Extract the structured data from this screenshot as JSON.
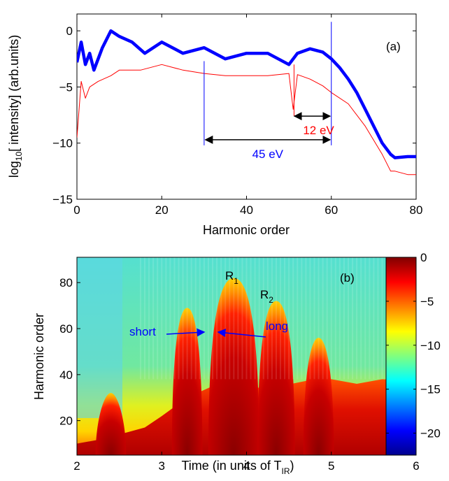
{
  "chart_data": [
    {
      "panel_label": "(a)",
      "type": "line",
      "xlabel": "Harmonic order",
      "ylabel": "log10[ intensity] (arb.units)",
      "xlim": [
        0,
        80
      ],
      "ylim": [
        -15,
        1.5
      ],
      "x_ticks": [
        "0",
        "20",
        "40",
        "60",
        "80"
      ],
      "y_ticks": [
        "0",
        "−5",
        "−10",
        "−15"
      ],
      "series": [
        {
          "color": "#0000ff",
          "style": "thick",
          "x": [
            0,
            1,
            2,
            3,
            4,
            6,
            8,
            10,
            13,
            16,
            20,
            25,
            30,
            35,
            40,
            45,
            50,
            52,
            55,
            58,
            60,
            62,
            64,
            66,
            68,
            70,
            72,
            74,
            75,
            78,
            80
          ],
          "y": [
            -2.8,
            -1.0,
            -3.0,
            -2.0,
            -3.5,
            -1.5,
            0.0,
            -0.5,
            -1.0,
            -2.0,
            -1.0,
            -2.0,
            -1.5,
            -2.5,
            -2.0,
            -2.0,
            -3.0,
            -2.0,
            -1.6,
            -1.9,
            -2.5,
            -3.3,
            -4.3,
            -5.5,
            -7.0,
            -8.5,
            -10.0,
            -11.0,
            -11.3,
            -11.2,
            -11.2
          ]
        },
        {
          "color": "#ff0000",
          "style": "thin",
          "x": [
            0,
            1,
            2,
            3,
            5,
            8,
            10,
            15,
            20,
            25,
            30,
            35,
            40,
            45,
            50,
            51,
            52,
            55,
            58,
            60,
            64,
            68,
            72,
            74,
            75,
            78,
            80
          ],
          "y": [
            -9.5,
            -4.5,
            -6.0,
            -5.0,
            -4.5,
            -4.0,
            -3.5,
            -3.5,
            -3.0,
            -3.5,
            -3.8,
            -4.0,
            -4.0,
            -4.0,
            -3.8,
            -7.0,
            -3.9,
            -4.3,
            -4.9,
            -5.5,
            -6.5,
            -8.5,
            -11.0,
            -12.5,
            -12.5,
            -12.8,
            -12.8
          ]
        }
      ],
      "annotations": [
        {
          "text": "45 eV",
          "color": "#0000ff",
          "from_x": 30,
          "to_x": 60,
          "y": -9.7
        },
        {
          "text": "12 eV",
          "color": "#ff0000",
          "from_x": 51,
          "to_x": 60,
          "y": -7.6
        }
      ]
    },
    {
      "panel_label": "(b)",
      "type": "heatmap",
      "xlabel": "Time (in units of T",
      "xlabel_sub": "IR",
      "xlabel_end": ")",
      "ylabel": "Harmonic order",
      "xlim": [
        2,
        6
      ],
      "ylim": [
        5,
        91
      ],
      "x_ticks": [
        "2",
        "3",
        "4",
        "5",
        "6"
      ],
      "y_ticks": [
        "20",
        "40",
        "60",
        "80"
      ],
      "colorbar": {
        "min": -22.5,
        "max": 0,
        "ticks": [
          "0",
          "−5",
          "−10",
          "−15",
          "−20"
        ]
      },
      "peaks": [
        {
          "label": "R",
          "sub": "1",
          "t": 3.85,
          "max_order": 82
        },
        {
          "label": "R",
          "sub": "2",
          "t": 4.35,
          "max_order": 72
        }
      ],
      "minor_peaks": [
        {
          "t": 3.3,
          "max_order": 69
        },
        {
          "t": 4.85,
          "max_order": 56
        },
        {
          "t": 2.4,
          "max_order": 32
        }
      ],
      "annotations": [
        {
          "text": "short",
          "color": "#0000ff"
        },
        {
          "text": "long",
          "color": "#0000ff"
        }
      ]
    }
  ]
}
